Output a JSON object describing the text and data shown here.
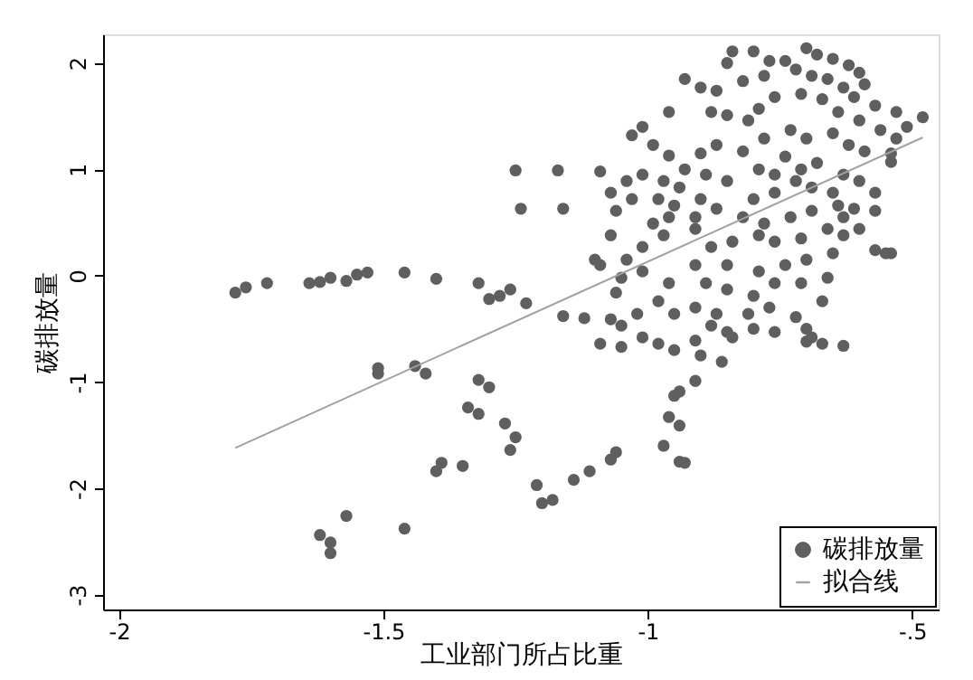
{
  "chart_data": {
    "type": "scatter",
    "xlabel": "工业部门所占比重",
    "ylabel": "碳排放量",
    "xlim": [
      -2.03,
      -0.45
    ],
    "ylim": [
      -3.14,
      2.27
    ],
    "xticks": [
      -2,
      -1.5,
      -1,
      {
        "value": -0.5,
        "label": "-.5"
      }
    ],
    "yticks": [
      2,
      1,
      0,
      -1,
      -2,
      -3
    ],
    "grid": false,
    "legend": "bottom right",
    "series": [
      {
        "name": "碳排放量",
        "color": "#5f5f5f",
        "marker": "circle",
        "x": [
          -1.78,
          -1.76,
          -1.72,
          -1.64,
          -1.62,
          -1.6,
          -1.57,
          -1.55,
          -1.53,
          -1.46,
          -1.4,
          -1.32,
          -1.3,
          -1.28,
          -1.26,
          -1.23,
          -1.25,
          -1.17,
          -1.09,
          -1.24,
          -1.16,
          -1.16,
          -1.12,
          -1.51,
          -1.51,
          -1.44,
          -1.42,
          -1.32,
          -1.3,
          -1.34,
          -1.32,
          -1.27,
          -1.25,
          -1.26,
          -1.4,
          -1.39,
          -1.35,
          -1.21,
          -1.2,
          -1.18,
          -1.14,
          -1.11,
          -1.07,
          -1.06,
          -1.62,
          -1.6,
          -1.6,
          -1.57,
          -1.46,
          -0.97,
          -0.94,
          -0.93,
          -0.96,
          -0.94,
          -0.95,
          -0.94,
          -0.91,
          -0.63,
          -0.67,
          -0.7,
          -0.76,
          -0.93,
          -0.9,
          -0.85,
          -0.84,
          -0.8,
          -0.77,
          -0.74,
          -0.7,
          -0.68,
          -0.65,
          -0.62,
          -0.6,
          -0.59,
          -0.87,
          -0.82,
          -0.78,
          -0.72,
          -0.69,
          -0.66,
          -0.63,
          -0.61,
          -0.57,
          -0.53,
          -0.48,
          -0.51,
          -0.53,
          -0.56,
          -0.96,
          -1.01,
          -1.03,
          -0.99,
          -0.96,
          -0.88,
          -0.85,
          -0.81,
          -0.79,
          -0.76,
          -0.71,
          -0.67,
          -0.64,
          -0.6,
          -0.59,
          -0.54,
          -0.54,
          -0.9,
          -0.87,
          -0.82,
          -0.78,
          -0.73,
          -0.7,
          -0.65,
          -0.62,
          -0.74,
          -0.79,
          -0.76,
          -0.71,
          -0.68,
          -0.63,
          -0.6,
          -0.65,
          -0.69,
          -0.72,
          -0.76,
          -0.8,
          -0.82,
          -0.78,
          -0.73,
          -0.69,
          -0.64,
          -0.61,
          -0.57,
          -0.6,
          -0.63,
          -0.66,
          -0.71,
          -0.76,
          -0.79,
          -0.57,
          -0.55,
          -0.65,
          -0.7,
          -0.74,
          -0.79,
          -0.85,
          -0.88,
          -0.91,
          -0.96,
          -0.98,
          -1.03,
          -1.06,
          -1.07,
          -1.04,
          -1.01,
          -0.97,
          -0.94,
          -0.9,
          -0.87,
          -0.85,
          -0.89,
          -0.93,
          -0.95,
          -0.97,
          -1.01,
          -1.04,
          -1.09,
          -1.1,
          -1.05,
          -1.01,
          -0.96,
          -0.91,
          -0.89,
          -0.85,
          -0.8,
          -0.76,
          -0.71,
          -0.66,
          -0.67,
          -0.72,
          -0.7,
          -0.77,
          -0.81,
          -0.85,
          -0.88,
          -0.91,
          -0.95,
          -0.98,
          -1.02,
          -1.05,
          -1.07,
          -1.09,
          -1.05,
          -1.01,
          -0.98,
          -0.95,
          -0.9,
          -0.86,
          -0.84,
          -0.8,
          -0.87,
          -0.91,
          -1.06,
          -1.07,
          -0.99,
          -0.91,
          -0.84,
          -0.63,
          -0.57,
          -0.54,
          -0.69
        ],
        "values": [
          -0.16,
          -0.11,
          -0.07,
          -0.07,
          -0.06,
          -0.02,
          -0.05,
          0.01,
          0.03,
          0.03,
          -0.03,
          -0.07,
          -0.22,
          -0.19,
          -0.13,
          -0.26,
          0.99,
          0.99,
          0.98,
          0.63,
          0.63,
          -0.38,
          -0.4,
          -0.87,
          -0.92,
          -0.85,
          -0.92,
          -0.98,
          -1.05,
          -1.24,
          -1.3,
          -1.39,
          -1.52,
          -1.64,
          -1.84,
          -1.76,
          -1.79,
          -1.97,
          -2.14,
          -2.11,
          -1.92,
          -1.84,
          -1.73,
          -1.66,
          -2.44,
          -2.51,
          -2.61,
          -2.26,
          -2.38,
          -1.6,
          -1.75,
          -1.76,
          -1.33,
          -1.41,
          -1.13,
          -1.09,
          -0.99,
          -0.66,
          -0.64,
          -0.62,
          -0.53,
          1.85,
          1.77,
          2.0,
          2.11,
          2.11,
          2.02,
          2.02,
          2.14,
          2.08,
          2.04,
          1.98,
          1.91,
          1.8,
          1.74,
          1.83,
          1.88,
          1.94,
          1.88,
          1.85,
          1.77,
          1.68,
          1.6,
          1.54,
          1.49,
          1.4,
          1.29,
          1.37,
          1.54,
          1.4,
          1.32,
          1.23,
          1.13,
          1.54,
          1.51,
          1.46,
          1.57,
          1.68,
          1.71,
          1.66,
          1.54,
          1.46,
          1.17,
          1.15,
          1.07,
          1.15,
          1.23,
          1.17,
          1.29,
          1.37,
          1.29,
          1.34,
          1.23,
          1.12,
          1.0,
          0.95,
          1.0,
          1.06,
          0.95,
          0.89,
          0.78,
          0.83,
          0.89,
          0.78,
          0.72,
          0.55,
          0.49,
          0.55,
          0.61,
          0.66,
          0.63,
          0.61,
          0.44,
          0.38,
          0.44,
          0.35,
          0.32,
          0.38,
          0.24,
          0.21,
          0.21,
          0.15,
          0.1,
          0.04,
          0.1,
          0.27,
          0.44,
          0.55,
          0.72,
          0.72,
          0.61,
          0.78,
          0.89,
          0.95,
          0.89,
          0.83,
          0.72,
          0.63,
          0.89,
          0.95,
          1.0,
          0.66,
          0.38,
          0.27,
          0.15,
          0.1,
          0.15,
          -0.02,
          0.04,
          -0.07,
          0.1,
          -0.07,
          -0.13,
          -0.19,
          -0.07,
          -0.07,
          -0.02,
          -0.24,
          -0.39,
          -0.5,
          -0.3,
          -0.36,
          -0.53,
          -0.47,
          -0.3,
          -0.36,
          -0.24,
          -0.36,
          -0.47,
          -0.41,
          -0.64,
          -0.67,
          -0.58,
          -0.64,
          -0.7,
          -0.75,
          -0.81,
          -0.58,
          -0.5,
          -0.36,
          -0.61,
          -0.16,
          0.38,
          0.49,
          0.55,
          0.32,
          0.55,
          0.78,
          0.21,
          -0.58
        ]
      },
      {
        "name": "拟合线",
        "color": "#a0a0a0",
        "type": "line",
        "line_style": "solid",
        "x": [
          -1.78,
          -0.48
        ],
        "values": [
          -1.62,
          1.3
        ]
      }
    ]
  }
}
